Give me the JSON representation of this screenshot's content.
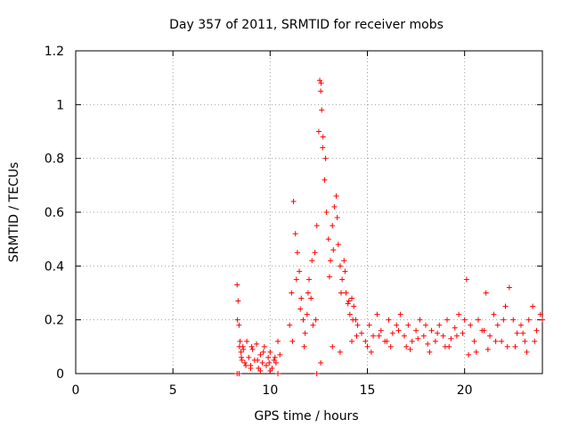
{
  "chart_data": {
    "type": "scatter",
    "title": "Day 357 of 2011, SRMTID for receiver mobs",
    "xlabel": "GPS time / hours",
    "ylabel": "SRMTID / TECUs",
    "xlim": [
      0,
      24
    ],
    "ylim": [
      0,
      1.2
    ],
    "xticks": [
      0,
      5,
      10,
      15,
      20
    ],
    "yticks": [
      0,
      0.2,
      0.4,
      0.6,
      0.8,
      1,
      1.2
    ],
    "xtick_labels": [
      "0",
      "5",
      "10",
      "15",
      "20"
    ],
    "ytick_labels": [
      "0",
      "0.2",
      "0.4",
      "0.6",
      "0.8",
      "1",
      "1.2"
    ],
    "grid": true,
    "marker": "+",
    "color": "#ff0000",
    "series": [
      {
        "x": [
          8.3,
          8.35,
          8.4,
          8.45,
          8.5,
          8.55,
          8.6,
          8.7,
          8.8,
          8.9,
          9.0,
          9.1,
          9.2,
          9.3,
          9.4,
          9.5,
          9.6,
          9.7,
          9.8,
          9.9,
          10.0,
          10.1,
          10.2,
          10.3,
          10.4,
          10.5,
          11.0,
          11.1,
          11.2,
          11.3,
          11.4,
          11.5,
          11.6,
          11.7,
          11.8,
          11.9,
          12.0,
          12.1,
          12.2,
          12.3,
          12.4,
          12.5,
          12.55,
          12.6,
          12.65,
          12.7,
          12.8,
          12.9,
          13.0,
          13.1,
          13.2,
          13.3,
          13.4,
          13.5,
          13.6,
          13.7,
          13.8,
          13.9,
          14.0,
          14.1,
          14.2,
          14.3,
          14.4,
          14.5,
          14.7,
          14.9,
          15.1,
          15.3,
          15.5,
          15.7,
          15.9,
          16.1,
          16.3,
          16.5,
          16.7,
          16.9,
          17.1,
          17.3,
          17.5,
          17.7,
          17.9,
          18.1,
          18.3,
          18.5,
          18.7,
          18.9,
          19.1,
          19.3,
          19.5,
          19.7,
          19.9,
          20.1,
          20.3,
          20.5,
          20.7,
          20.9,
          21.1,
          21.3,
          21.5,
          21.7,
          21.9,
          22.1,
          22.3,
          22.5,
          22.7,
          22.9,
          23.1,
          23.3,
          23.5,
          23.7,
          23.9,
          8.32,
          8.42,
          8.52,
          8.62,
          8.75,
          9.05,
          9.35,
          9.65,
          9.95,
          10.25,
          11.15,
          11.35,
          11.55,
          11.75,
          11.95,
          12.15,
          12.35,
          12.62,
          12.72,
          12.85,
          13.05,
          13.25,
          13.45,
          13.65,
          13.85,
          14.05,
          14.25,
          14.45,
          15.0,
          15.6,
          16.0,
          16.6,
          17.0,
          17.6,
          18.0,
          18.6,
          19.0,
          19.6,
          20.0,
          20.6,
          21.0,
          21.6,
          22.0,
          22.6,
          23.0,
          23.6,
          24.0,
          8.3,
          8.4,
          9.0,
          9.5,
          10.0,
          10.4,
          12.4,
          12.6,
          13.2,
          13.6,
          14.2,
          15.2,
          16.2,
          17.2,
          18.2,
          19.2,
          20.2,
          21.2,
          22.2,
          23.2
        ],
        "y": [
          0.33,
          0.27,
          0.18,
          0.12,
          0.08,
          0.05,
          0.1,
          0.04,
          0.12,
          0.06,
          0.03,
          0.09,
          0.05,
          0.11,
          0.02,
          0.07,
          0.04,
          0.1,
          0.03,
          0.06,
          0.08,
          0.02,
          0.05,
          0.04,
          0.12,
          0.07,
          0.18,
          0.3,
          0.64,
          0.52,
          0.45,
          0.38,
          0.28,
          0.2,
          0.15,
          0.22,
          0.35,
          0.28,
          0.18,
          0.45,
          0.55,
          0.9,
          1.09,
          1.05,
          0.98,
          0.84,
          0.72,
          0.6,
          0.5,
          0.42,
          0.55,
          0.62,
          0.66,
          0.48,
          0.4,
          0.35,
          0.42,
          0.3,
          0.26,
          0.22,
          0.28,
          0.25,
          0.2,
          0.18,
          0.15,
          0.12,
          0.18,
          0.14,
          0.22,
          0.16,
          0.12,
          0.2,
          0.15,
          0.18,
          0.22,
          0.14,
          0.18,
          0.12,
          0.16,
          0.2,
          0.14,
          0.11,
          0.16,
          0.12,
          0.18,
          0.14,
          0.2,
          0.13,
          0.17,
          0.22,
          0.15,
          0.35,
          0.18,
          0.12,
          0.2,
          0.16,
          0.3,
          0.14,
          0.22,
          0.18,
          0.12,
          0.25,
          0.32,
          0.2,
          0.15,
          0.18,
          0.12,
          0.2,
          0.25,
          0.16,
          0.22,
          0.2,
          0.1,
          0.06,
          0.09,
          0.03,
          0.1,
          0.05,
          0.08,
          0.04,
          0.06,
          0.12,
          0.35,
          0.24,
          0.1,
          0.3,
          0.42,
          0.2,
          1.08,
          0.88,
          0.8,
          0.36,
          0.46,
          0.58,
          0.3,
          0.38,
          0.27,
          0.2,
          0.14,
          0.1,
          0.14,
          0.12,
          0.16,
          0.1,
          0.13,
          0.18,
          0.15,
          0.1,
          0.14,
          0.2,
          0.08,
          0.16,
          0.12,
          0.2,
          0.1,
          0.15,
          0.12,
          0.2,
          0.0,
          0.0,
          0.02,
          0.01,
          0.01,
          0.0,
          0.0,
          0.04,
          0.1,
          0.08,
          0.12,
          0.08,
          0.1,
          0.09,
          0.08,
          0.1,
          0.07,
          0.09,
          0.1,
          0.08
        ]
      }
    ]
  }
}
